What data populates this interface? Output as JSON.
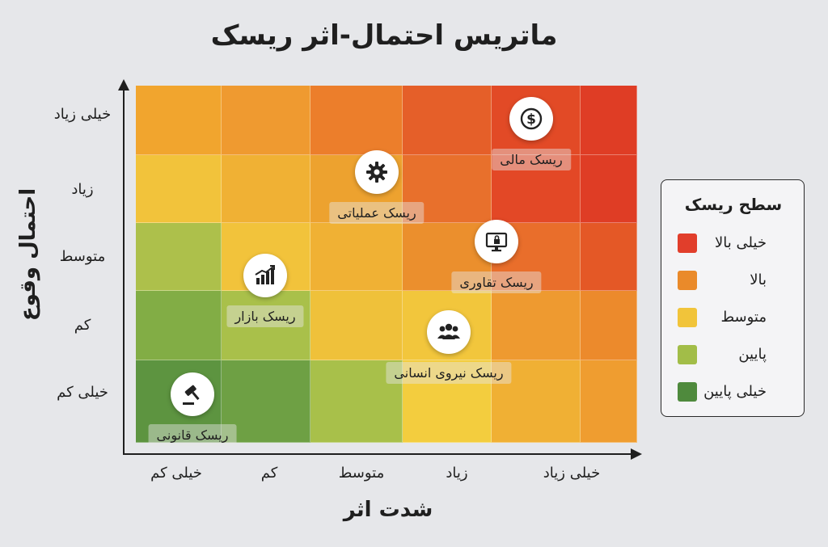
{
  "title": "ماتریس احتمال-اثر ریسک",
  "colors": {
    "very_high": "#e13e2b",
    "high": "#ea8a2a",
    "medium": "#f1c43a",
    "low": "#a2bd48",
    "very_low": "#4f8a3d",
    "background": "#e6e7ea"
  },
  "matrix_colors": [
    [
      "#f1a52e",
      "#ef9a30",
      "#ec7e2b",
      "#e55f29",
      "#e24a26",
      "#df3d25"
    ],
    [
      "#f2c33b",
      "#f0b134",
      "#eda22f",
      "#e8702c",
      "#e34826",
      "#df3d25"
    ],
    [
      "#adc04b",
      "#f2c33b",
      "#f0b134",
      "#eb8f2d",
      "#e96e2b",
      "#e45826"
    ],
    [
      "#82ad45",
      "#a9c04a",
      "#efc13a",
      "#f2c63c",
      "#ee9a30",
      "#ec8a2c"
    ],
    [
      "#5d9440",
      "#6ea044",
      "#a8c04a",
      "#f3cd3e",
      "#f0b034",
      "#ef9d30"
    ]
  ],
  "y_axis": {
    "label": "احتمال وقوع",
    "ticks": [
      "خیلی زیاد",
      "زیاد",
      "متوسط",
      "کم",
      "خیلی کم"
    ]
  },
  "x_axis": {
    "label": "شدت اثر",
    "ticks": [
      "خیلی کم",
      "کم",
      "متوسط",
      "زیاد",
      "خیلی زیاد"
    ]
  },
  "risks": [
    {
      "label": "ریسک مالی",
      "icon": "dollar-coin-icon",
      "impact": "خیلی زیاد",
      "likelihood": "خیلی زیاد"
    },
    {
      "label": "ریسک عملیاتی",
      "icon": "gear-icon",
      "impact": "متوسط",
      "likelihood": "زیاد"
    },
    {
      "label": "ریسک تقاوری",
      "icon": "monitor-lock-icon",
      "impact": "زیاد",
      "likelihood": "متوسط"
    },
    {
      "label": "ریسک بازار",
      "icon": "bar-chart-icon",
      "impact": "کم",
      "likelihood": "متوسط"
    },
    {
      "label": "ریسک نیروی انسانی",
      "icon": "people-icon",
      "impact": "زیاد",
      "likelihood": "کم"
    },
    {
      "label": "ریسک قانونی",
      "icon": "gavel-icon",
      "impact": "خیلی کم",
      "likelihood": "خیلی کم"
    }
  ],
  "legend": {
    "title": "سطح ریسک",
    "items": [
      {
        "label": "خیلی بالا",
        "color": "#e13e2b"
      },
      {
        "label": "بالا",
        "color": "#ea8a2a"
      },
      {
        "label": "متوسط",
        "color": "#f1c43a"
      },
      {
        "label": "پایین",
        "color": "#a2bd48"
      },
      {
        "label": "خیلی پایین",
        "color": "#4f8a3d"
      }
    ]
  }
}
